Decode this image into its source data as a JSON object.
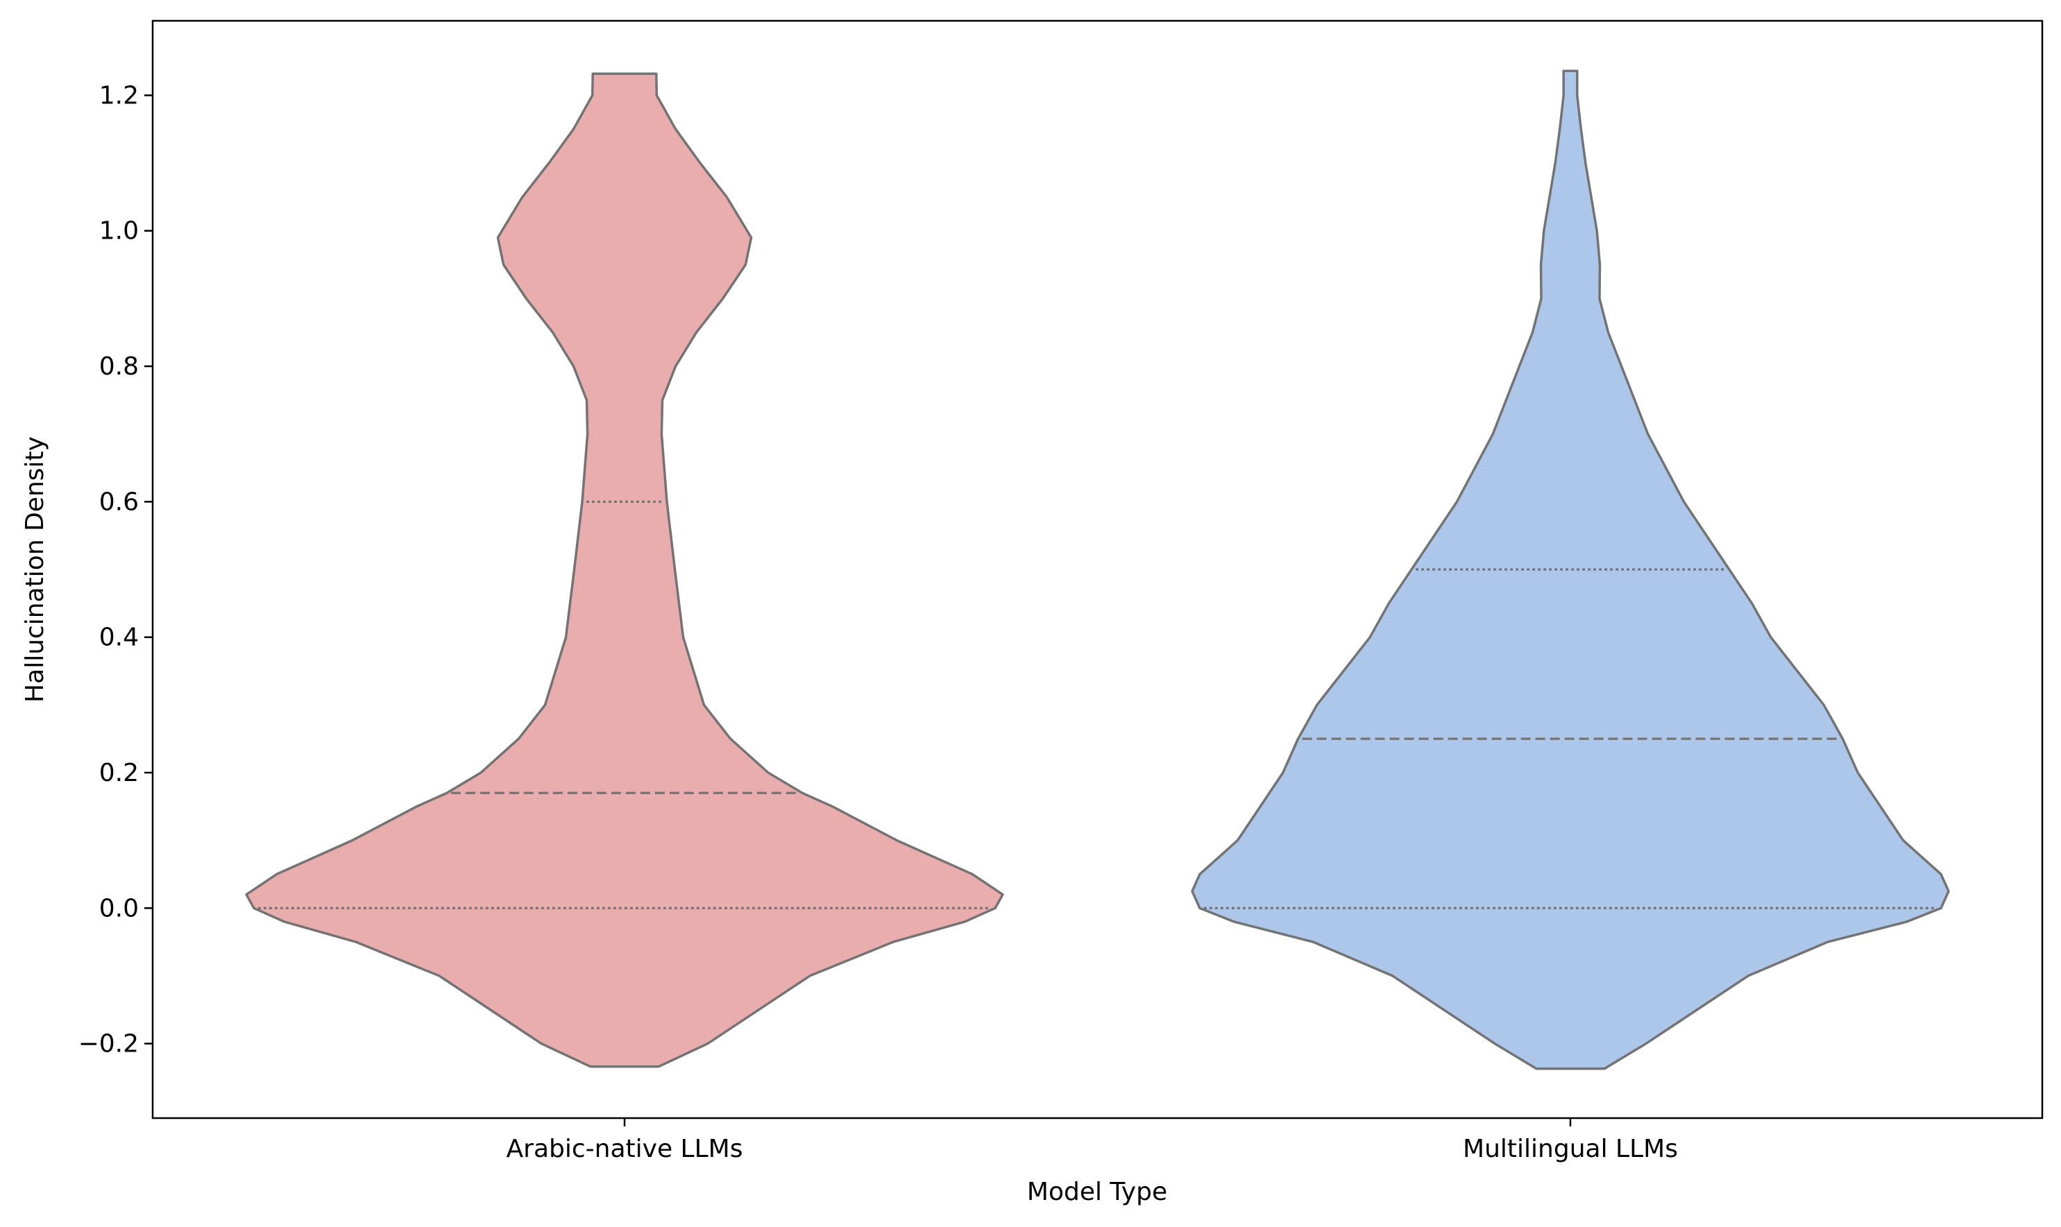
{
  "chart_data": {
    "type": "violin",
    "title": "",
    "xlabel": "Model Type",
    "ylabel": "Hallucination Density",
    "ylim": [
      -0.31,
      1.31
    ],
    "yticks": [
      -0.2,
      0.0,
      0.2,
      0.4,
      0.6,
      0.8,
      1.0,
      1.2
    ],
    "ytick_labels": [
      "−0.2",
      "0.0",
      "0.2",
      "0.4",
      "0.6",
      "0.8",
      "1.0",
      "1.2"
    ],
    "grid": false,
    "legend": "none",
    "outline_color": "#737373",
    "categories": [
      "Arabic-native LLMs",
      "Multilingual LLMs"
    ],
    "series": [
      {
        "category": "Arabic-native LLMs",
        "color": "#eaadae",
        "quartiles": {
          "q1": 0.0,
          "median": 0.17,
          "q3": 0.6
        },
        "y_range": [
          -0.234,
          1.232
        ],
        "density_profile": [
          [
            -0.234,
            0.09
          ],
          [
            -0.2,
            0.22
          ],
          [
            -0.1,
            0.49
          ],
          [
            -0.05,
            0.71
          ],
          [
            -0.02,
            0.9
          ],
          [
            0.0,
            0.98
          ],
          [
            0.02,
            1.0
          ],
          [
            0.05,
            0.92
          ],
          [
            0.1,
            0.72
          ],
          [
            0.15,
            0.55
          ],
          [
            0.17,
            0.47
          ],
          [
            0.2,
            0.38
          ],
          [
            0.25,
            0.28
          ],
          [
            0.3,
            0.21
          ],
          [
            0.4,
            0.155
          ],
          [
            0.5,
            0.133
          ],
          [
            0.6,
            0.112
          ],
          [
            0.7,
            0.098
          ],
          [
            0.75,
            0.1
          ],
          [
            0.8,
            0.135
          ],
          [
            0.85,
            0.19
          ],
          [
            0.9,
            0.26
          ],
          [
            0.95,
            0.32
          ],
          [
            0.99,
            0.335
          ],
          [
            1.05,
            0.27
          ],
          [
            1.1,
            0.2
          ],
          [
            1.15,
            0.135
          ],
          [
            1.2,
            0.085
          ],
          [
            1.232,
            0.084
          ]
        ]
      },
      {
        "category": "Multilingual LLMs",
        "color": "#adc7ea",
        "quartiles": {
          "q1": 0.0,
          "median": 0.25,
          "q3": 0.5
        },
        "y_range": [
          -0.237,
          1.236
        ],
        "density_profile": [
          [
            -0.237,
            0.09
          ],
          [
            -0.2,
            0.2
          ],
          [
            -0.1,
            0.47
          ],
          [
            -0.05,
            0.68
          ],
          [
            -0.02,
            0.89
          ],
          [
            0.0,
            0.98
          ],
          [
            0.025,
            1.0
          ],
          [
            0.05,
            0.98
          ],
          [
            0.1,
            0.88
          ],
          [
            0.15,
            0.82
          ],
          [
            0.2,
            0.76
          ],
          [
            0.25,
            0.72
          ],
          [
            0.3,
            0.67
          ],
          [
            0.35,
            0.6
          ],
          [
            0.4,
            0.53
          ],
          [
            0.45,
            0.48
          ],
          [
            0.5,
            0.42
          ],
          [
            0.55,
            0.36
          ],
          [
            0.6,
            0.3
          ],
          [
            0.7,
            0.205
          ],
          [
            0.8,
            0.135
          ],
          [
            0.85,
            0.1
          ],
          [
            0.9,
            0.077
          ],
          [
            0.95,
            0.078
          ],
          [
            1.0,
            0.07
          ],
          [
            1.05,
            0.055
          ],
          [
            1.1,
            0.04
          ],
          [
            1.15,
            0.028
          ],
          [
            1.2,
            0.018
          ],
          [
            1.236,
            0.018
          ]
        ]
      }
    ]
  }
}
